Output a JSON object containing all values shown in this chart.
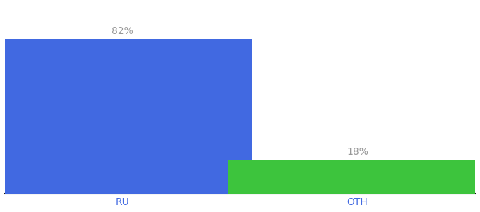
{
  "categories": [
    "RU",
    "OTH"
  ],
  "values": [
    82,
    18
  ],
  "bar_colors": [
    "#4169e1",
    "#3dc43d"
  ],
  "labels": [
    "82%",
    "18%"
  ],
  "ylim": [
    0,
    100
  ],
  "background_color": "#ffffff",
  "bar_width": 0.55,
  "label_fontsize": 10,
  "tick_fontsize": 10,
  "tick_color": "#4169e1",
  "label_color": "#999999",
  "x_positions": [
    0.25,
    0.75
  ]
}
